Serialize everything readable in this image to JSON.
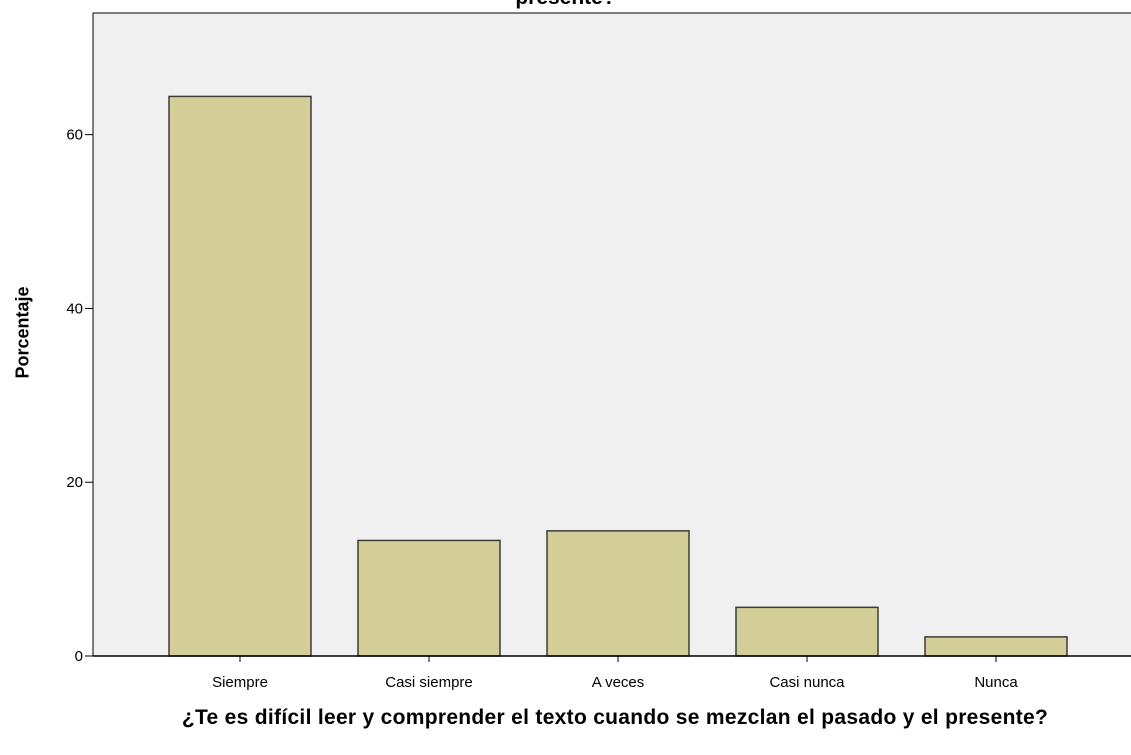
{
  "chart_data": {
    "type": "bar",
    "title_visible_fragment": "presente?",
    "xlabel": "¿Te es difícil leer y comprender el texto cuando se mezclan el pasado y el presente?",
    "ylabel": "Porcentaje",
    "categories": [
      "Siempre",
      "Casi siempre",
      "A veces",
      "Casi nunca",
      "Nunca"
    ],
    "values": [
      64.4,
      13.3,
      14.4,
      5.6,
      2.2
    ],
    "ylim": [
      0,
      74
    ],
    "yticks": [
      0,
      20,
      40,
      60
    ],
    "grid": false,
    "legend": "none",
    "colors": {
      "plot_background": "#f0f0f0",
      "bar_fill": "#d3ce97",
      "bar_stroke": "#3c3c3c",
      "axis": "#000000"
    }
  }
}
